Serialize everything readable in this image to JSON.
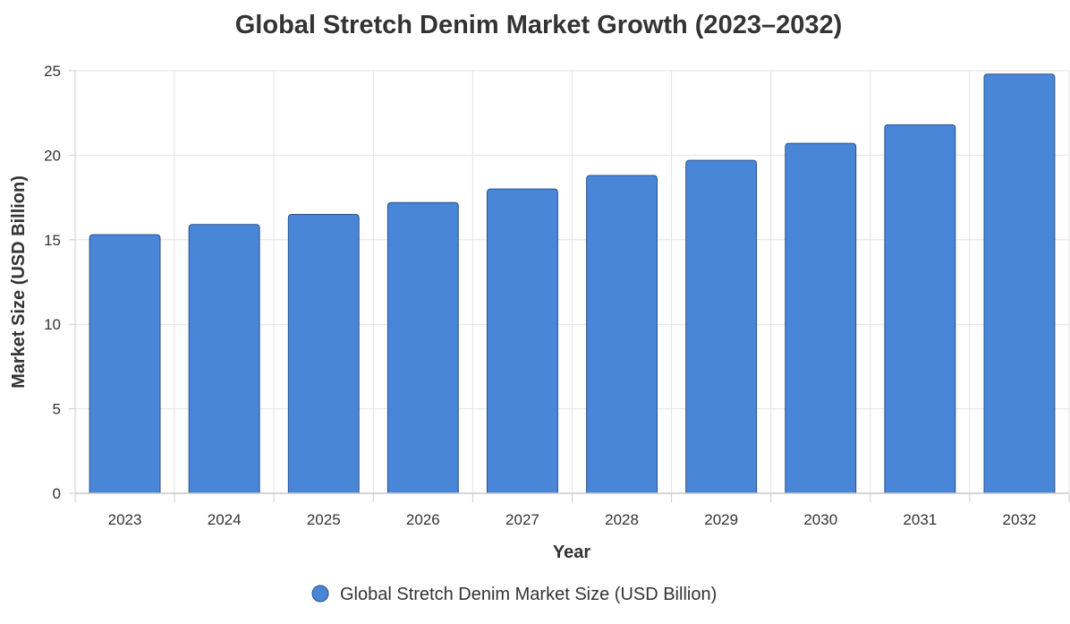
{
  "chart_data": {
    "type": "bar",
    "title": "Global Stretch Denim Market Growth (2023–2032)",
    "xlabel": "Year",
    "ylabel": "Market Size (USD Billion)",
    "categories": [
      "2023",
      "2024",
      "2025",
      "2026",
      "2027",
      "2028",
      "2029",
      "2030",
      "2031",
      "2032"
    ],
    "series": [
      {
        "name": "Global Stretch Denim Market Size (USD Billion)",
        "values": [
          15.3,
          15.9,
          16.5,
          17.2,
          18.0,
          18.8,
          19.7,
          20.7,
          21.8,
          24.8
        ]
      }
    ],
    "ylim": [
      0,
      25
    ],
    "yticks": [
      "0",
      "5",
      "10",
      "15",
      "20",
      "25"
    ],
    "grid": true,
    "legend_position": "bottom",
    "colors": {
      "bar_fill": "#4a86d8",
      "bar_stroke": "#2a4f86",
      "grid": "#e3e3e3",
      "text": "#333333"
    }
  }
}
